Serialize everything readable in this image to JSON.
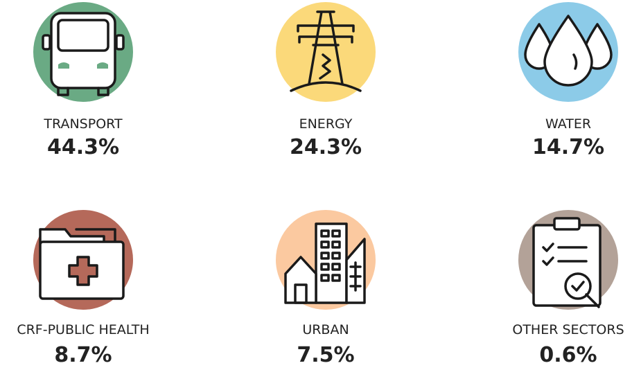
{
  "items": [
    {
      "label": "TRANSPORT",
      "value": "44.3%",
      "color": "#6aaa84"
    },
    {
      "label": "ENERGY",
      "value": "24.3%",
      "color": "#fbd97a"
    },
    {
      "label": "WATER",
      "value": "14.7%",
      "color": "#8ccbe8"
    },
    {
      "label": "CRF-PUBLIC HEALTH",
      "value": "8.7%",
      "color": "#b5695a"
    },
    {
      "label": "URBAN",
      "value": "7.5%",
      "color": "#fbc9a0"
    },
    {
      "label": "OTHER SECTORS",
      "value": "0.6%",
      "color": "#b3a298"
    }
  ]
}
